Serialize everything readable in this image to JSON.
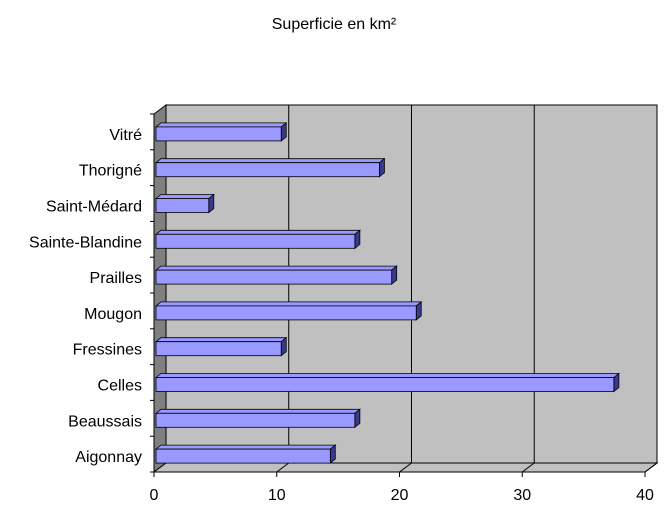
{
  "chart_data": {
    "type": "bar",
    "orientation": "horizontal",
    "style": "3d",
    "title": "Superficie en km²",
    "xlabel": "",
    "ylabel": "",
    "categories": [
      "Vitré",
      "Thorigné",
      "Saint-Médard",
      "Sainte-Blandine",
      "Prailles",
      "Mougon",
      "Fressines",
      "Celles",
      "Beaussais",
      "Aigonnay"
    ],
    "values": [
      10.2,
      18.2,
      4.3,
      16.2,
      19.2,
      21.2,
      10.2,
      37.3,
      16.2,
      14.2
    ],
    "xlim": [
      0,
      40
    ],
    "xticks": [
      "0",
      "10",
      "20",
      "30",
      "40"
    ],
    "grid": true,
    "legend": "none",
    "colors": {
      "bar_face": "#9999ff",
      "bar_dark": "#3a3a8c",
      "plot_bg": "#c0c0c0",
      "wall_side": "#808080"
    }
  }
}
